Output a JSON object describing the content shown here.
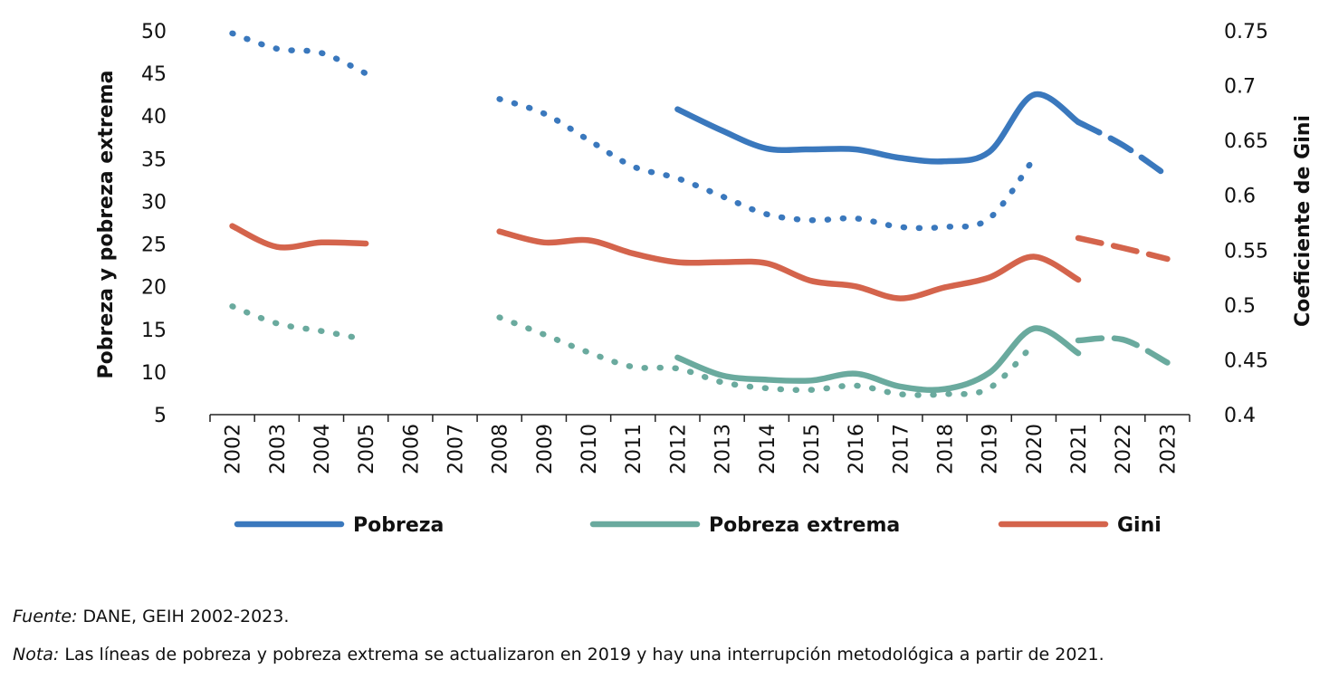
{
  "chart_data": {
    "type": "line",
    "xlabel": "",
    "ylabel": "Pobreza y pobreza extrema",
    "y2label": "Coeficiente de Gini",
    "ylim": [
      5,
      50
    ],
    "y2lim": [
      0.4,
      0.75
    ],
    "yticks": [
      "50",
      "45",
      "40",
      "35",
      "30",
      "25",
      "20",
      "15",
      "10",
      "5"
    ],
    "y2ticks": [
      "0.75",
      "0.7",
      "0.65",
      "0.6",
      "0.55",
      "0.5",
      "0.45",
      "0.4"
    ],
    "categories": [
      "2002",
      "2003",
      "2004",
      "2005",
      "2006",
      "2007",
      "2008",
      "2009",
      "2010",
      "2011",
      "2012",
      "2013",
      "2014",
      "2015",
      "2016",
      "2017",
      "2018",
      "2019",
      "2020",
      "2021",
      "2022",
      "2023"
    ],
    "legend_position": "bottom",
    "grid": false,
    "series": [
      {
        "name": "Pobreza",
        "axis": "left",
        "color": "#3a78bd",
        "segments": [
          {
            "style": "dotted",
            "x": [
              "2002",
              "2003",
              "2004",
              "2005"
            ],
            "y": [
              49.7,
              47.9,
              47.4,
              45.0
            ]
          },
          {
            "style": "dotted",
            "x": [
              "2008",
              "2009",
              "2010",
              "2011",
              "2012",
              "2013",
              "2014",
              "2015",
              "2016",
              "2017",
              "2018",
              "2019",
              "2020"
            ],
            "y": [
              42.0,
              40.3,
              37.2,
              34.1,
              32.7,
              30.6,
              28.5,
              27.8,
              28.0,
              27.0,
              27.0,
              28.0,
              35.0
            ]
          },
          {
            "style": "solid",
            "x": [
              "2012",
              "2013",
              "2014",
              "2015",
              "2016",
              "2017",
              "2018",
              "2019",
              "2020",
              "2021"
            ],
            "y": [
              40.8,
              38.3,
              36.2,
              36.1,
              36.1,
              35.1,
              34.7,
              35.8,
              42.5,
              39.3
            ]
          },
          {
            "style": "dashed",
            "x": [
              "2021",
              "2022",
              "2023"
            ],
            "y": [
              39.3,
              36.6,
              33.0
            ]
          }
        ]
      },
      {
        "name": "Pobreza extrema",
        "axis": "left",
        "color": "#6aaa9e",
        "segments": [
          {
            "style": "dotted",
            "x": [
              "2002",
              "2003",
              "2004",
              "2005"
            ],
            "y": [
              17.7,
              15.7,
              14.8,
              13.8
            ]
          },
          {
            "style": "dotted",
            "x": [
              "2008",
              "2009",
              "2010",
              "2011",
              "2012",
              "2013",
              "2014",
              "2015",
              "2016",
              "2017",
              "2018",
              "2019",
              "2020"
            ],
            "y": [
              16.4,
              14.4,
              12.3,
              10.6,
              10.4,
              8.8,
              8.1,
              7.9,
              8.4,
              7.4,
              7.4,
              8.1,
              13.3
            ]
          },
          {
            "style": "solid",
            "x": [
              "2012",
              "2013",
              "2014",
              "2015",
              "2016",
              "2017",
              "2018",
              "2019",
              "2020",
              "2021"
            ],
            "y": [
              11.7,
              9.6,
              9.1,
              9.0,
              9.8,
              8.3,
              8.0,
              9.9,
              15.1,
              12.2
            ]
          },
          {
            "style": "dashed",
            "x": [
              "2021",
              "2022",
              "2023"
            ],
            "y": [
              13.7,
              13.8,
              11.1
            ]
          }
        ]
      },
      {
        "name": "Gini",
        "axis": "right",
        "color": "#d4644c",
        "segments": [
          {
            "style": "solid",
            "x": [
              "2002",
              "2003",
              "2004",
              "2005"
            ],
            "y": [
              0.572,
              0.553,
              0.557,
              0.556
            ]
          },
          {
            "style": "solid",
            "x": [
              "2008",
              "2009",
              "2010",
              "2011",
              "2012",
              "2013",
              "2014",
              "2015",
              "2016",
              "2017",
              "2018",
              "2019",
              "2020",
              "2021"
            ],
            "y": [
              0.567,
              0.557,
              0.559,
              0.547,
              0.539,
              0.539,
              0.538,
              0.522,
              0.517,
              0.506,
              0.516,
              0.525,
              0.544,
              0.523
            ]
          },
          {
            "style": "dashed",
            "x": [
              "2021",
              "2022",
              "2023"
            ],
            "y": [
              0.561,
              0.552,
              0.542
            ]
          }
        ]
      }
    ]
  },
  "footer": {
    "source_label": "Fuente:",
    "source_text": " DANE, GEIH 2002-2023.",
    "note_label": "Nota:",
    "note_text": " Las líneas de pobreza y pobreza extrema se actualizaron en 2019 y hay una interrupción metodológica a partir de 2021."
  }
}
